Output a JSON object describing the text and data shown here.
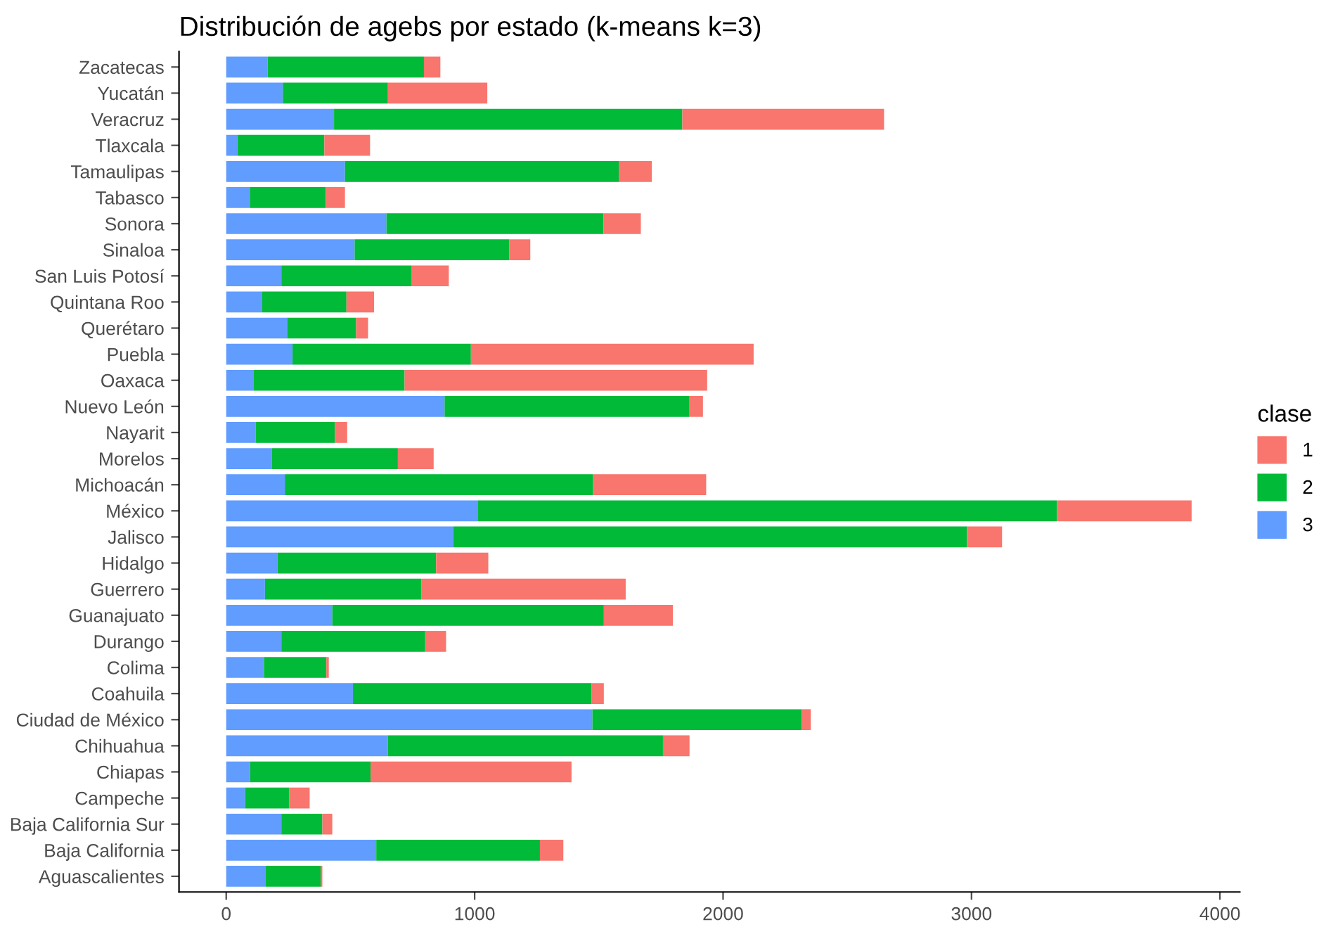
{
  "chart_data": {
    "type": "bar",
    "orientation": "horizontal",
    "stacked": true,
    "title": "Distribución de agebs por estado (k-means k=3)",
    "legend_title": "clase",
    "legend": "right",
    "grid": false,
    "categories": [
      "Zacatecas",
      "Yucatán",
      "Veracruz",
      "Tlaxcala",
      "Tamaulipas",
      "Tabasco",
      "Sonora",
      "Sinaloa",
      "San Luis Potosí",
      "Quintana Roo",
      "Querétaro",
      "Puebla",
      "Oaxaca",
      "Nuevo León",
      "Nayarit",
      "Morelos",
      "Michoacán",
      "México",
      "Jalisco",
      "Hidalgo",
      "Guerrero",
      "Guanajuato",
      "Durango",
      "Colima",
      "Coahuila",
      "Ciudad de México",
      "Chihuahua",
      "Chiapas",
      "Campeche",
      "Baja California Sur",
      "Baja California",
      "Aguascalientes"
    ],
    "series": [
      {
        "name": "3",
        "color": "#619cff",
        "values": [
          167,
          228,
          434,
          45,
          478,
          95,
          645,
          517,
          222,
          145,
          245,
          267,
          111,
          879,
          119,
          183,
          236,
          1012,
          915,
          206,
          156,
          427,
          222,
          152,
          510,
          1474,
          651,
          96,
          76,
          222,
          604,
          159
        ]
      },
      {
        "name": "2",
        "color": "#00ba38",
        "values": [
          629,
          423,
          1402,
          350,
          1102,
          306,
          874,
          623,
          523,
          339,
          278,
          718,
          607,
          986,
          318,
          508,
          1241,
          2332,
          2067,
          639,
          629,
          1093,
          579,
          251,
          960,
          843,
          1107,
          485,
          177,
          165,
          659,
          221
        ]
      },
      {
        "name": "1",
        "color": "#f8766d",
        "values": [
          66,
          400,
          812,
          184,
          133,
          77,
          150,
          84,
          151,
          111,
          48,
          1138,
          1218,
          54,
          50,
          144,
          455,
          542,
          141,
          210,
          823,
          278,
          84,
          10,
          50,
          36,
          107,
          809,
          83,
          40,
          94,
          7
        ]
      }
    ],
    "xlim": [
      -190,
      4080
    ],
    "xticks": [
      0,
      1000,
      2000,
      3000,
      4000
    ]
  }
}
